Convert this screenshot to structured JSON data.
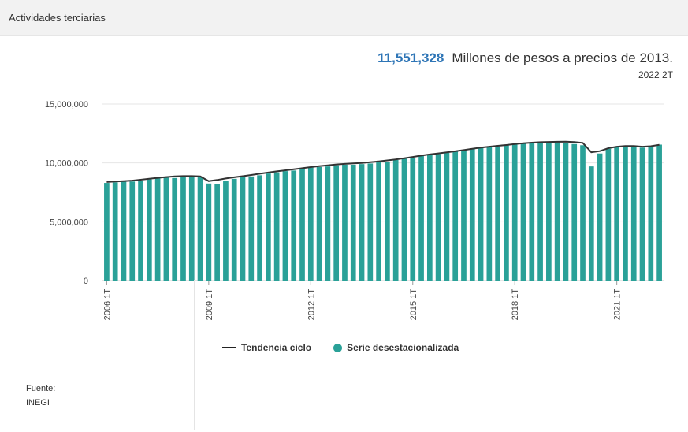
{
  "header": {
    "title": "Actividades terciarias"
  },
  "kpi": {
    "value": "11,551,328",
    "unit": "Millones de pesos a precios de 2013.",
    "period": "2022 2T"
  },
  "source": {
    "label": "Fuente:",
    "value": "INEGI"
  },
  "legend": {
    "line_label": "Tendencia ciclo",
    "bar_label": "Serie desestacionalizada"
  },
  "colors": {
    "bars": "#2aa198",
    "trend": "#333333",
    "kpi_value": "#2e75b6"
  },
  "chart_data": {
    "type": "bar",
    "title": "",
    "xlabel": "",
    "ylabel": "",
    "ylim": [
      0,
      15000000
    ],
    "y_ticks": [
      "0",
      "5,000,000",
      "10,000,000",
      "15,000,000"
    ],
    "y_tick_values": [
      0,
      5000000,
      10000000,
      15000000
    ],
    "x_tick_labels": [
      {
        "index": 0,
        "label": "2006 1T"
      },
      {
        "index": 12,
        "label": "2009 1T"
      },
      {
        "index": 24,
        "label": "2012 1T"
      },
      {
        "index": 36,
        "label": "2015 1T"
      },
      {
        "index": 48,
        "label": "2018 1T"
      },
      {
        "index": 60,
        "label": "2021 1T"
      }
    ],
    "grid": true,
    "legend_position": "bottom",
    "categories": [
      "2006 1T",
      "2006 2T",
      "2006 3T",
      "2006 4T",
      "2007 1T",
      "2007 2T",
      "2007 3T",
      "2007 4T",
      "2008 1T",
      "2008 2T",
      "2008 3T",
      "2008 4T",
      "2009 1T",
      "2009 2T",
      "2009 3T",
      "2009 4T",
      "2010 1T",
      "2010 2T",
      "2010 3T",
      "2010 4T",
      "2011 1T",
      "2011 2T",
      "2011 3T",
      "2011 4T",
      "2012 1T",
      "2012 2T",
      "2012 3T",
      "2012 4T",
      "2013 1T",
      "2013 2T",
      "2013 3T",
      "2013 4T",
      "2014 1T",
      "2014 2T",
      "2014 3T",
      "2014 4T",
      "2015 1T",
      "2015 2T",
      "2015 3T",
      "2015 4T",
      "2016 1T",
      "2016 2T",
      "2016 3T",
      "2016 4T",
      "2017 1T",
      "2017 2T",
      "2017 3T",
      "2017 4T",
      "2018 1T",
      "2018 2T",
      "2018 3T",
      "2018 4T",
      "2019 1T",
      "2019 2T",
      "2019 3T",
      "2019 4T",
      "2020 1T",
      "2020 2T",
      "2020 3T",
      "2020 4T",
      "2021 1T",
      "2021 2T",
      "2021 3T",
      "2021 4T",
      "2022 1T",
      "2022 2T"
    ],
    "series": [
      {
        "name": "Serie desestacionalizada",
        "type": "bar",
        "values": [
          8300000,
          8350000,
          8400000,
          8420000,
          8500000,
          8600000,
          8700000,
          8750000,
          8720000,
          8820000,
          8850000,
          8780000,
          8250000,
          8200000,
          8500000,
          8650000,
          8780000,
          8850000,
          8950000,
          9100000,
          9200000,
          9300000,
          9350000,
          9500000,
          9600000,
          9650000,
          9700000,
          9800000,
          9850000,
          9850000,
          9900000,
          9950000,
          10050000,
          10100000,
          10250000,
          10350000,
          10450000,
          10600000,
          10650000,
          10750000,
          10850000,
          10950000,
          11100000,
          11200000,
          11300000,
          11350000,
          11400000,
          11500000,
          11600000,
          11650000,
          11700000,
          11750000,
          11700000,
          11750000,
          11700000,
          11600000,
          11500000,
          9700000,
          10800000,
          11200000,
          11350000,
          11450000,
          11450000,
          11300000,
          11400000,
          11551328
        ]
      },
      {
        "name": "Tendencia ciclo",
        "type": "line",
        "values": [
          8380000,
          8420000,
          8460000,
          8500000,
          8570000,
          8650000,
          8730000,
          8800000,
          8850000,
          8880000,
          8880000,
          8850000,
          8450000,
          8550000,
          8680000,
          8780000,
          8870000,
          8970000,
          9080000,
          9180000,
          9280000,
          9370000,
          9460000,
          9550000,
          9640000,
          9720000,
          9800000,
          9870000,
          9920000,
          9960000,
          10000000,
          10060000,
          10130000,
          10210000,
          10300000,
          10400000,
          10510000,
          10620000,
          10720000,
          10810000,
          10900000,
          10990000,
          11090000,
          11200000,
          11300000,
          11380000,
          11450000,
          11520000,
          11600000,
          11670000,
          11720000,
          11760000,
          11780000,
          11790000,
          11800000,
          11770000,
          11700000,
          10900000,
          11000000,
          11250000,
          11380000,
          11430000,
          11430000,
          11380000,
          11420000,
          11530000
        ]
      }
    ]
  }
}
